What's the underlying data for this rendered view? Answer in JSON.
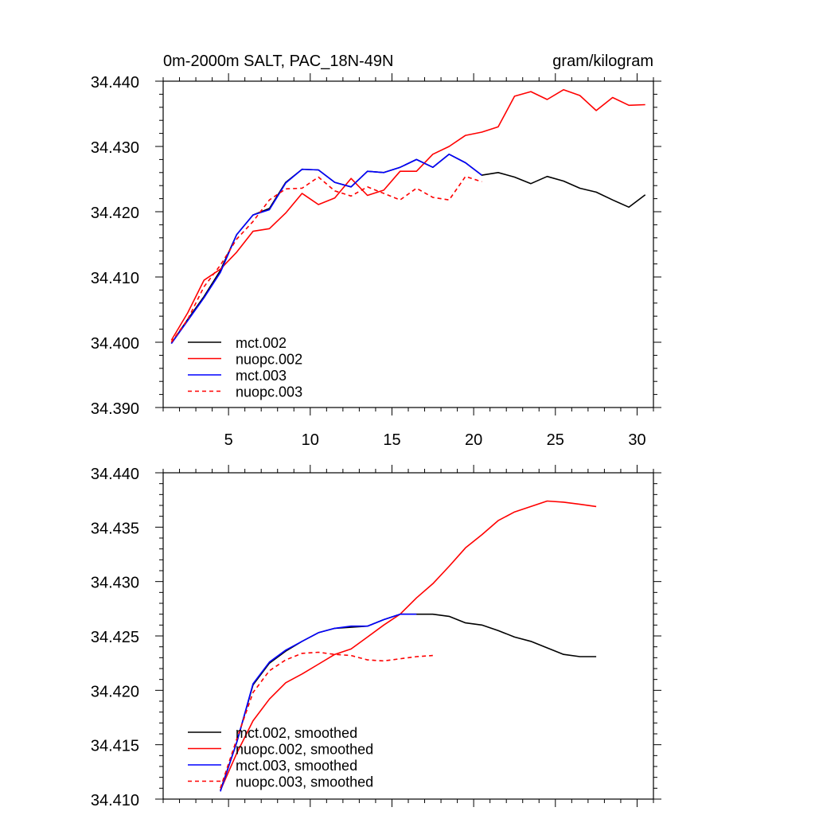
{
  "figure": {
    "title_left": "0m-2000m SALT, PAC_18N-49N",
    "title_right": "gram/kilogram"
  },
  "colors": {
    "mct002": "#000000",
    "nuopc002": "#ff0000",
    "mct003": "#0000ff",
    "nuopc003": "#ff0000"
  },
  "chart_data": [
    {
      "type": "line",
      "title": "0m-2000m SALT, PAC_18N-49N",
      "units": "gram/kilogram",
      "xlim": [
        1,
        31
      ],
      "ylim": [
        34.39,
        34.44
      ],
      "xticks": [
        5,
        10,
        15,
        20,
        25,
        30
      ],
      "yticks": [
        "34.390",
        "34.400",
        "34.410",
        "34.420",
        "34.430",
        "34.440"
      ],
      "legend_position": "bottom-left",
      "series": [
        {
          "name": "mct.002",
          "color": "#000000",
          "dash": "solid",
          "x": [
            1.5,
            2.5,
            3.5,
            4.5,
            5.5,
            6.5,
            7.5,
            8.5,
            9.5,
            10.5,
            11.5,
            12.5,
            13.5,
            14.5,
            15.5,
            16.5,
            17.5,
            18.5,
            19.5,
            20.5,
            21.5,
            22.5,
            23.5,
            24.5,
            25.5,
            26.5,
            27.5,
            28.5,
            29.5,
            30.5
          ],
          "y": [
            34.3998,
            34.4035,
            34.407,
            34.411,
            34.4165,
            34.4195,
            34.4205,
            34.4245,
            34.4265,
            34.4264,
            34.4245,
            34.4238,
            34.4262,
            34.426,
            34.4268,
            34.428,
            34.4268,
            34.4288,
            34.4275,
            34.4256,
            34.426,
            34.4253,
            34.4243,
            34.4254,
            34.4247,
            34.4236,
            34.423,
            34.4218,
            34.4207,
            34.4226
          ]
        },
        {
          "name": "nuopc.002",
          "color": "#ff0000",
          "dash": "solid",
          "x": [
            1.5,
            2.5,
            3.5,
            4.5,
            5.5,
            6.5,
            7.5,
            8.5,
            9.5,
            10.5,
            11.5,
            12.5,
            13.5,
            14.5,
            15.5,
            16.5,
            17.5,
            18.5,
            19.5,
            20.5,
            21.5,
            22.5,
            23.5,
            24.5,
            25.5,
            26.5,
            27.5,
            28.5,
            29.5,
            30.5
          ],
          "y": [
            34.4003,
            34.4045,
            34.4095,
            34.4112,
            34.4138,
            34.417,
            34.4174,
            34.4198,
            34.4228,
            34.4211,
            34.4221,
            34.4251,
            34.4225,
            34.4233,
            34.4262,
            34.4262,
            34.4288,
            34.43,
            34.4317,
            34.4322,
            34.433,
            34.4377,
            34.4384,
            34.4372,
            34.4387,
            34.4378,
            34.4355,
            34.4375,
            34.4363,
            34.4364
          ]
        },
        {
          "name": "mct.003",
          "color": "#0000ff",
          "dash": "solid",
          "x": [
            1.5,
            2.5,
            3.5,
            4.5,
            5.5,
            6.5,
            7.5,
            8.5,
            9.5,
            10.5,
            11.5,
            12.5,
            13.5,
            14.5,
            15.5,
            16.5,
            17.5,
            18.5,
            19.5,
            20.5
          ],
          "y": [
            34.3998,
            34.4033,
            34.4068,
            34.4107,
            34.4165,
            34.4195,
            34.4203,
            34.4244,
            34.4265,
            34.4264,
            34.4245,
            34.4238,
            34.4262,
            34.426,
            34.4268,
            34.428,
            34.4268,
            34.4288,
            34.4275,
            34.4256
          ]
        },
        {
          "name": "nuopc.003",
          "color": "#ff0000",
          "dash": "dashed",
          "x": [
            1.5,
            2.5,
            3.5,
            4.5,
            5.5,
            6.5,
            7.5,
            8.5,
            9.5,
            10.5,
            11.5,
            12.5,
            13.5,
            14.5,
            15.5,
            16.5,
            17.5,
            18.5,
            19.5,
            20.5
          ],
          "y": [
            34.4,
            34.4035,
            34.4085,
            34.4118,
            34.4158,
            34.4185,
            34.4218,
            34.4235,
            34.4236,
            34.4253,
            34.4232,
            34.4224,
            34.4238,
            34.4228,
            34.4218,
            34.4236,
            34.4222,
            34.4218,
            34.4254,
            34.4246
          ]
        }
      ]
    },
    {
      "type": "line",
      "xlim": [
        1,
        31
      ],
      "ylim": [
        34.41,
        34.44
      ],
      "xticks": [
        5,
        10,
        15,
        20,
        25,
        30
      ],
      "yticks": [
        "34.410",
        "34.415",
        "34.420",
        "34.425",
        "34.430",
        "34.435",
        "34.440"
      ],
      "legend_position": "bottom-left",
      "series": [
        {
          "name": "mct.002, smoothed",
          "color": "#000000",
          "dash": "solid",
          "x": [
            4.5,
            5.5,
            6.5,
            7.5,
            8.5,
            9.5,
            10.5,
            11.5,
            12.5,
            13.5,
            14.5,
            15.5,
            16.5,
            17.5,
            18.5,
            19.5,
            20.5,
            21.5,
            22.5,
            23.5,
            24.5,
            25.5,
            26.5,
            27.5
          ],
          "y": [
            34.4108,
            34.4152,
            34.4205,
            34.4225,
            34.4236,
            34.4245,
            34.4253,
            34.4257,
            34.4258,
            34.4259,
            34.4265,
            34.427,
            34.427,
            34.427,
            34.4268,
            34.4262,
            34.426,
            34.4255,
            34.4249,
            34.4245,
            34.4239,
            34.4233,
            34.4231,
            34.4231
          ]
        },
        {
          "name": "nuopc.002, smoothed",
          "color": "#ff0000",
          "dash": "solid",
          "x": [
            4.5,
            5.5,
            6.5,
            7.5,
            8.5,
            9.5,
            10.5,
            11.5,
            12.5,
            13.5,
            14.5,
            15.5,
            16.5,
            17.5,
            18.5,
            19.5,
            20.5,
            21.5,
            22.5,
            23.5,
            24.5,
            25.5,
            26.5,
            27.5
          ],
          "y": [
            34.4108,
            34.4142,
            34.4172,
            34.4192,
            34.4207,
            34.4215,
            34.4224,
            34.4233,
            34.4238,
            34.4249,
            34.426,
            34.427,
            34.4285,
            34.4298,
            34.4314,
            34.4331,
            34.4343,
            34.4356,
            34.4364,
            34.4369,
            34.4374,
            34.4373,
            34.4371,
            34.4369
          ]
        },
        {
          "name": "mct.003, smoothed",
          "color": "#0000ff",
          "dash": "solid",
          "x": [
            4.5,
            5.5,
            6.5,
            7.5,
            8.5,
            9.5,
            10.5,
            11.5,
            12.5,
            13.5,
            14.5,
            15.5,
            16.5
          ],
          "y": [
            34.4107,
            34.4152,
            34.4206,
            34.4226,
            34.4237,
            34.4245,
            34.4253,
            34.4257,
            34.4259,
            34.4259,
            34.4265,
            34.427,
            34.427
          ]
        },
        {
          "name": "nuopc.003, smoothed",
          "color": "#ff0000",
          "dash": "dashed",
          "x": [
            4.5,
            5.5,
            6.5,
            7.5,
            8.5,
            9.5,
            10.5,
            11.5,
            12.5,
            13.5,
            14.5,
            15.5,
            16.5,
            17.5
          ],
          "y": [
            34.411,
            34.4155,
            34.4198,
            34.4218,
            34.4228,
            34.4234,
            34.4235,
            34.4233,
            34.4232,
            34.4228,
            34.4227,
            34.4229,
            34.4231,
            34.4232
          ]
        }
      ]
    }
  ]
}
